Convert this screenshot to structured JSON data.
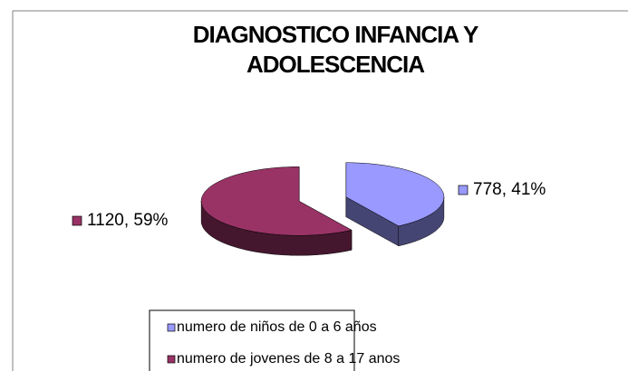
{
  "chart_data": {
    "type": "pie3d",
    "title": "DIAGNOSTICO INFANCIA Y ADOLESCENCIA",
    "categories": [
      "numero de niños de 0 a 6 años",
      "numero de jovenes de 8 a 17 anos"
    ],
    "values": [
      778,
      1120
    ],
    "value_labels": [
      "778, 41%",
      "1120, 59%"
    ],
    "colors": [
      "#9999ff",
      "#993366"
    ],
    "legend": "bottom"
  }
}
